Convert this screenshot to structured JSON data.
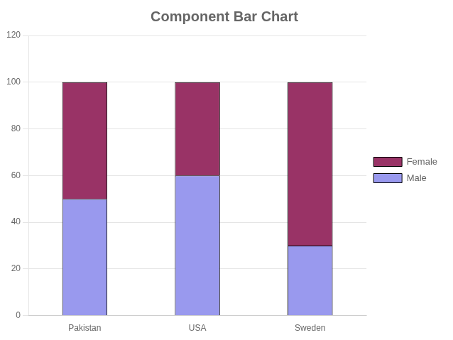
{
  "chart_data": {
    "type": "bar",
    "title": "Component Bar Chart",
    "categories": [
      "Pakistan",
      "USA",
      "Sweden"
    ],
    "series": [
      {
        "name": "Male",
        "color": "#9999EE",
        "values": [
          50,
          60,
          30
        ]
      },
      {
        "name": "Female",
        "color": "#993366",
        "values": [
          50,
          40,
          70
        ]
      }
    ],
    "stacked": true,
    "ylim": [
      0,
      120
    ],
    "yticks": [
      0,
      20,
      40,
      60,
      80,
      100,
      120
    ],
    "grid": true,
    "legend": "right"
  }
}
